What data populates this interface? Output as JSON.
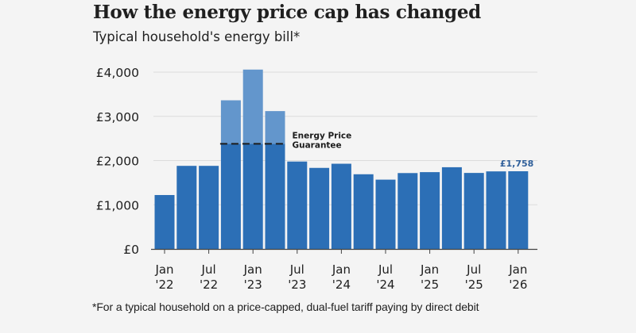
{
  "colors": {
    "bar": "#2c6fb6",
    "bar_above_guarantee": "#6396cc",
    "end_label": "#2f5f9a",
    "grid": "#dcdcdc",
    "axis": "#444444",
    "guarantee_line": "#1c1c1c"
  },
  "chart_data": {
    "type": "bar",
    "title": "How the energy price cap has changed",
    "subtitle": "Typical household's energy bill*",
    "xlabel": "",
    "ylabel": "",
    "categories": [
      "Jan '22",
      "Apr '22",
      "Jul '22",
      "Oct '22",
      "Jan '23",
      "Apr '23",
      "Jul '23",
      "Oct '23",
      "Jan '24",
      "Apr '24",
      "Jul '24",
      "Oct '24",
      "Jan '25",
      "Apr '25",
      "Jul '25",
      "Oct '25",
      "Jan '26"
    ],
    "values": [
      1220,
      1880,
      1880,
      3363,
      4058,
      3119,
      1978,
      1834,
      1928,
      1690,
      1568,
      1717,
      1738,
      1849,
      1720,
      1755,
      1758
    ],
    "ylim": [
      0,
      4000
    ],
    "yticks": [
      {
        "value": 0,
        "label": "£0"
      },
      {
        "value": 1000,
        "label": "£1,000"
      },
      {
        "value": 2000,
        "label": "£2,000"
      },
      {
        "value": 3000,
        "label": "£3,000"
      },
      {
        "value": 4000,
        "label": "£4,000"
      }
    ],
    "xticks": [
      {
        "index": 0,
        "line1": "Jan",
        "line2": "'22"
      },
      {
        "index": 2,
        "line1": "Jul",
        "line2": "'22"
      },
      {
        "index": 4,
        "line1": "Jan",
        "line2": "'23"
      },
      {
        "index": 6,
        "line1": "Jul",
        "line2": "'23"
      },
      {
        "index": 8,
        "line1": "Jan",
        "line2": "'24"
      },
      {
        "index": 10,
        "line1": "Jul",
        "line2": "'24"
      },
      {
        "index": 12,
        "line1": "Jan",
        "line2": "'25"
      },
      {
        "index": 14,
        "line1": "Jul",
        "line2": "'25"
      },
      {
        "index": 16,
        "line1": "Jan",
        "line2": "'26"
      }
    ],
    "grid": true,
    "guarantee": {
      "value": 2380,
      "applies_to": [
        "Oct '22",
        "Jan '23",
        "Apr '23"
      ],
      "label_lines": [
        "Energy Price",
        "Guarantee"
      ]
    },
    "end_label": {
      "category": "Jan '26",
      "text": "£1,758"
    },
    "footnote": "*For a typical household on a price-capped, dual-fuel tariff paying by direct debit"
  }
}
